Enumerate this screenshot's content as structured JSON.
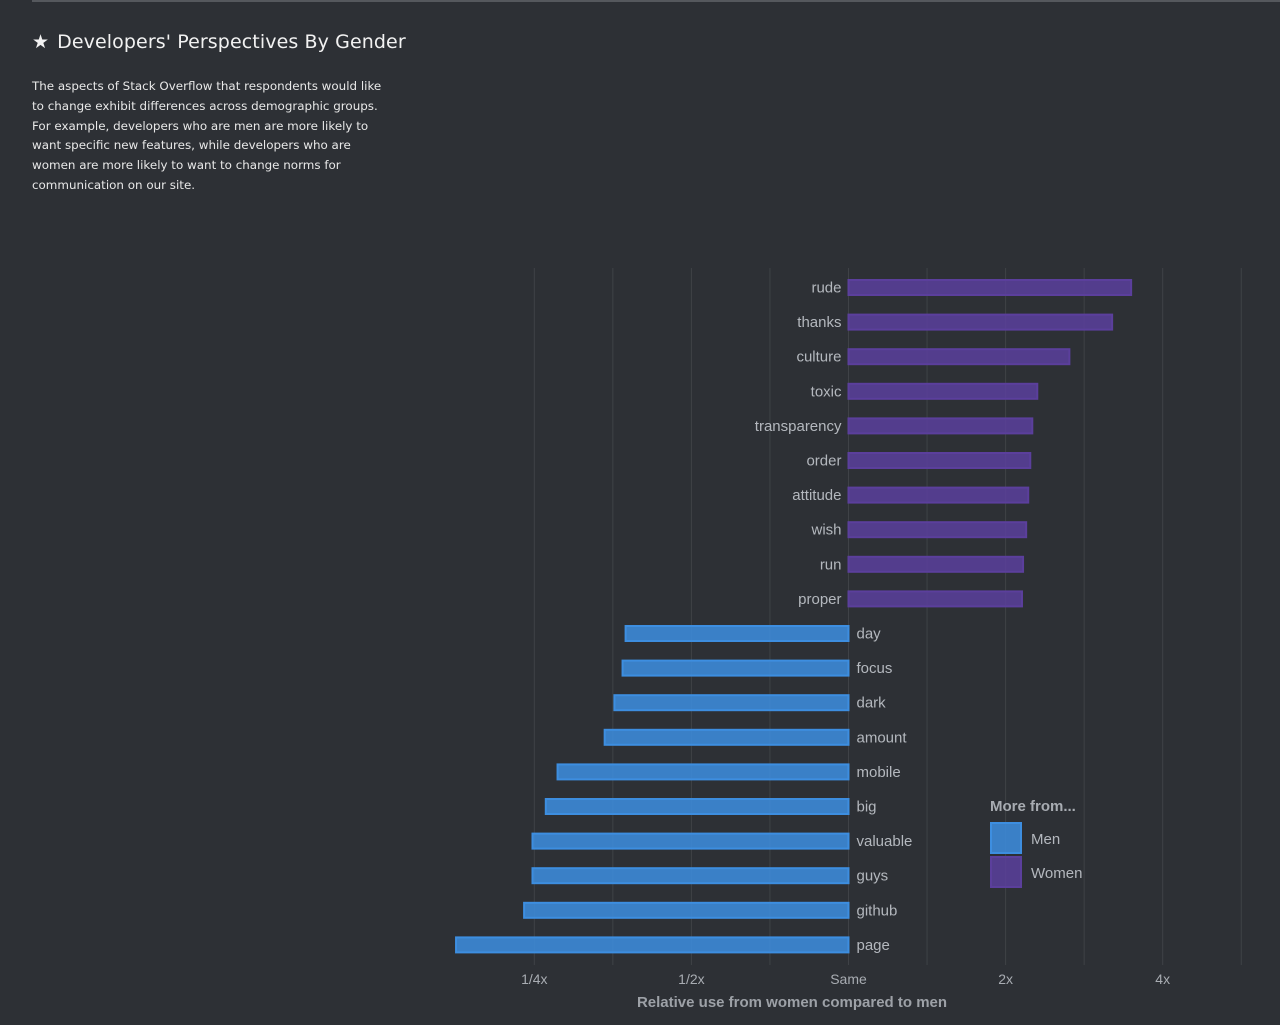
{
  "header": {
    "star": "★",
    "title": "Developers' Perspectives By Gender",
    "description": "The aspects of Stack Overflow that respondents would like to change exhibit differences across demographic groups. For example, developers who are men are more likely to want specific new features, while developers who are women are more likely to want to change norms for communication on our site."
  },
  "chart_data": {
    "type": "bar",
    "orientation": "horizontal",
    "scale": "log2",
    "xlabel": "Relative use from women compared to men",
    "ticks": [
      {
        "value": 0.25,
        "label": "1/4x"
      },
      {
        "value": 0.5,
        "label": "1/2x"
      },
      {
        "value": 1,
        "label": "Same"
      },
      {
        "value": 2,
        "label": "2x"
      },
      {
        "value": 4,
        "label": "4x"
      }
    ],
    "xlim": [
      0.177,
      5.66
    ],
    "grid": true,
    "categories": [
      "rude",
      "thanks",
      "culture",
      "toxic",
      "transparency",
      "order",
      "attitude",
      "wish",
      "run",
      "proper",
      "day",
      "focus",
      "dark",
      "amount",
      "mobile",
      "big",
      "valuable",
      "guys",
      "github",
      "page"
    ],
    "values": [
      3.48,
      3.2,
      2.65,
      2.3,
      2.25,
      2.23,
      2.21,
      2.19,
      2.16,
      2.15,
      0.374,
      0.369,
      0.356,
      0.341,
      0.277,
      0.263,
      0.248,
      0.248,
      0.239,
      0.177
    ],
    "group": [
      "Women",
      "Women",
      "Women",
      "Women",
      "Women",
      "Women",
      "Women",
      "Women",
      "Women",
      "Women",
      "Men",
      "Men",
      "Men",
      "Men",
      "Men",
      "Men",
      "Men",
      "Men",
      "Men",
      "Men"
    ],
    "colors": {
      "Men": "#3d8ee0",
      "Women": "#5b3f9c"
    },
    "legend": {
      "title": "More from...",
      "position": "bottom-right",
      "entries": [
        {
          "name": "Men",
          "color": "#3d8ee0"
        },
        {
          "name": "Women",
          "color": "#5b3f9c"
        }
      ]
    }
  }
}
